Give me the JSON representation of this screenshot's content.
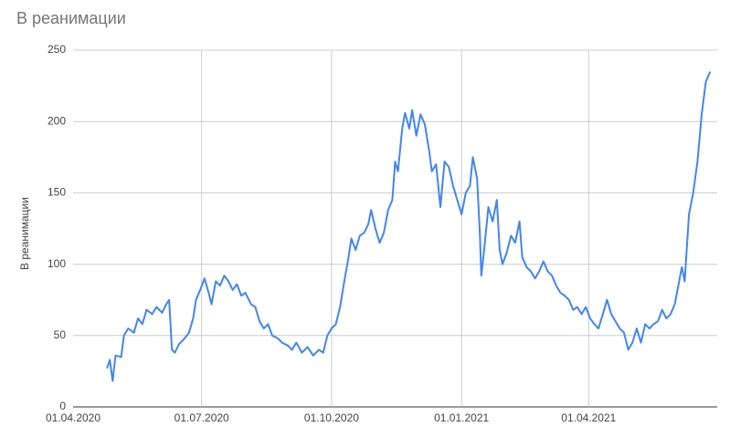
{
  "chart_data": {
    "type": "line",
    "title": "В реанимации",
    "y_label": "В реанимации",
    "xlim": [
      "01.04.2020",
      "01.07.2021"
    ],
    "xticks": [
      "01.04.2020",
      "01.07.2020",
      "01.10.2020",
      "01.01.2021",
      "01.04.2021"
    ],
    "ylim": [
      0,
      250
    ],
    "yticks": [
      0,
      50,
      100,
      150,
      200,
      250
    ],
    "grid": true,
    "x": [
      "25.04.2020",
      "27.04.2020",
      "29.04.2020",
      "01.05.2020",
      "05.05.2020",
      "07.05.2020",
      "10.05.2020",
      "14.05.2020",
      "17.05.2020",
      "20.05.2020",
      "23.05.2020",
      "27.05.2020",
      "30.05.2020",
      "03.06.2020",
      "06.06.2020",
      "08.06.2020",
      "10.06.2020",
      "12.06.2020",
      "15.06.2020",
      "19.06.2020",
      "22.06.2020",
      "25.06.2020",
      "27.06.2020",
      "30.06.2020",
      "03.07.2020",
      "06.07.2020",
      "08.07.2020",
      "11.07.2020",
      "14.07.2020",
      "17.07.2020",
      "20.07.2020",
      "23.07.2020",
      "26.07.2020",
      "29.07.2020",
      "01.08.2020",
      "05.08.2020",
      "08.08.2020",
      "11.08.2020",
      "14.08.2020",
      "17.08.2020",
      "20.08.2020",
      "24.08.2020",
      "27.08.2020",
      "31.08.2020",
      "03.09.2020",
      "06.09.2020",
      "10.09.2020",
      "14.09.2020",
      "18.09.2020",
      "22.09.2020",
      "25.09.2020",
      "28.09.2020",
      "01.10.2020",
      "04.10.2020",
      "07.10.2020",
      "10.10.2020",
      "13.10.2020",
      "15.10.2020",
      "18.10.2020",
      "21.10.2020",
      "24.10.2020",
      "27.10.2020",
      "29.10.2020",
      "01.11.2020",
      "04.11.2020",
      "07.11.2020",
      "10.11.2020",
      "13.11.2020",
      "15.11.2020",
      "17.11.2020",
      "20.11.2020",
      "22.11.2020",
      "25.11.2020",
      "27.11.2020",
      "30.11.2020",
      "03.12.2020",
      "06.12.2020",
      "09.12.2020",
      "11.12.2020",
      "14.12.2020",
      "17.12.2020",
      "20.12.2020",
      "23.12.2020",
      "26.12.2020",
      "29.12.2020",
      "01.01.2021",
      "04.01.2021",
      "07.01.2021",
      "09.01.2021",
      "12.01.2021",
      "14.01.2021",
      "15.01.2021",
      "17.01.2021",
      "20.01.2021",
      "23.01.2021",
      "26.01.2021",
      "28.01.2021",
      "30.01.2021",
      "02.02.2021",
      "05.02.2021",
      "08.02.2021",
      "11.02.2021",
      "13.02.2021",
      "16.02.2021",
      "19.02.2021",
      "22.02.2021",
      "25.02.2021",
      "28.02.2021",
      "03.03.2021",
      "06.03.2021",
      "09.03.2021",
      "12.03.2021",
      "15.03.2021",
      "18.03.2021",
      "21.03.2021",
      "24.03.2021",
      "27.03.2021",
      "30.03.2021",
      "02.04.2021",
      "05.04.2021",
      "08.04.2021",
      "11.04.2021",
      "14.04.2021",
      "17.04.2021",
      "20.04.2021",
      "23.04.2021",
      "26.04.2021",
      "29.04.2021",
      "02.05.2021",
      "05.05.2021",
      "08.05.2021",
      "11.05.2021",
      "14.05.2021",
      "17.05.2021",
      "20.05.2021",
      "23.05.2021",
      "26.05.2021",
      "29.05.2021",
      "01.06.2021",
      "04.06.2021",
      "06.06.2021",
      "08.06.2021",
      "11.06.2021",
      "14.06.2021",
      "17.06.2021",
      "20.06.2021",
      "23.06.2021",
      "26.06.2021"
    ],
    "series": [
      {
        "name": "В реанимации",
        "color": "#4285f4",
        "values": [
          27,
          33,
          18,
          36,
          35,
          50,
          55,
          52,
          62,
          58,
          68,
          65,
          70,
          66,
          72,
          75,
          40,
          38,
          44,
          48,
          52,
          62,
          75,
          82,
          90,
          80,
          72,
          88,
          85,
          92,
          88,
          82,
          86,
          78,
          80,
          72,
          70,
          60,
          55,
          58,
          50,
          48,
          45,
          43,
          40,
          45,
          38,
          42,
          36,
          40,
          38,
          50,
          55,
          58,
          70,
          88,
          105,
          118,
          110,
          120,
          122,
          128,
          138,
          125,
          115,
          122,
          138,
          145,
          172,
          165,
          195,
          206,
          195,
          208,
          190,
          205,
          198,
          180,
          165,
          170,
          140,
          172,
          168,
          155,
          145,
          135,
          150,
          155,
          175,
          160,
          120,
          92,
          110,
          140,
          130,
          145,
          110,
          100,
          108,
          120,
          115,
          130,
          105,
          98,
          95,
          90,
          95,
          102,
          95,
          92,
          85,
          80,
          78,
          75,
          68,
          70,
          65,
          70,
          62,
          58,
          55,
          65,
          75,
          65,
          60,
          55,
          52,
          40,
          45,
          55,
          45,
          58,
          55,
          58,
          60,
          68,
          62,
          65,
          72,
          88,
          98,
          88,
          135,
          150,
          172,
          205,
          228,
          235
        ]
      }
    ]
  }
}
